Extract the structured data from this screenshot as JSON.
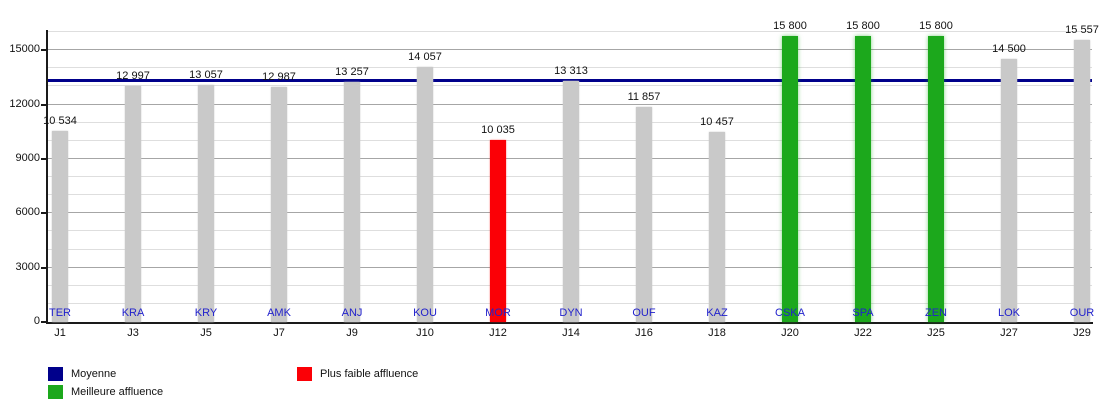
{
  "chart_data": {
    "type": "bar",
    "title": "",
    "categories": [
      "J1",
      "J3",
      "J5",
      "J7",
      "J9",
      "J10",
      "J12",
      "J14",
      "J16",
      "J18",
      "J20",
      "J22",
      "J25",
      "J27",
      "J29"
    ],
    "teams": [
      "TER",
      "KRA",
      "KRY",
      "AMK",
      "ANJ",
      "KOU",
      "MOR",
      "DYN",
      "OUF",
      "KAZ",
      "CSKA",
      "SPA",
      "ZEN",
      "LOK",
      "OUR"
    ],
    "values": [
      10534,
      12997,
      13057,
      12987,
      13257,
      14057,
      10035,
      13313,
      11857,
      10457,
      15800,
      15800,
      15800,
      14500,
      15557
    ],
    "value_labels": [
      "10 534",
      "12 997",
      "13 057",
      "12 987",
      "13 257",
      "14 057",
      "10 035",
      "13 313",
      "11 857",
      "10 457",
      "15 800",
      "15 800",
      "15 800",
      "14 500",
      "15 557"
    ],
    "bar_types": [
      "normal",
      "normal",
      "normal",
      "normal",
      "normal",
      "normal",
      "lowest",
      "normal",
      "normal",
      "normal",
      "best",
      "best",
      "best",
      "normal",
      "normal"
    ],
    "average": 13334,
    "ylim": [
      0,
      16000
    ],
    "y_major_step": 3000,
    "y_minor_step": 1000,
    "y_ticks": [
      0,
      3000,
      6000,
      9000,
      12000,
      15000
    ],
    "y_tick_labels": [
      "0",
      "3000",
      "6000",
      "9000",
      "12000",
      "15000"
    ],
    "grid": "on",
    "legend_position": "bottom",
    "legend": [
      {
        "label": "Moyenne",
        "color": "#00008b"
      },
      {
        "label": "Meilleure affluence",
        "color": "#1ca81c"
      },
      {
        "label": "Plus faible affluence",
        "color": "#fb0006"
      }
    ],
    "colors": {
      "normal": "#c9c9c9",
      "best": "#1ca81c",
      "lowest": "#fb0006",
      "average_line": "#00008b",
      "team_label": "#2222cc"
    }
  }
}
